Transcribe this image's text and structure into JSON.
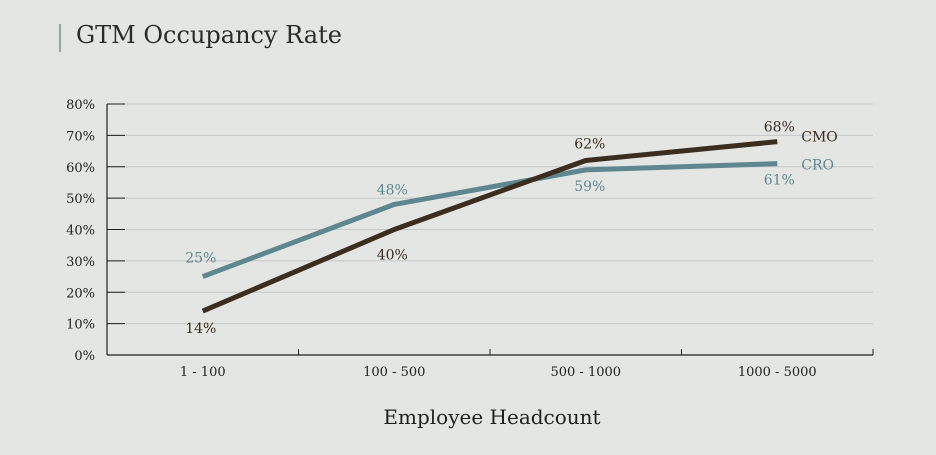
{
  "chart_data": {
    "type": "line",
    "title": "GTM Occupancy Rate",
    "xlabel": "Employee Headcount",
    "ylabel": "",
    "categories": [
      "1 - 100",
      "100 - 500",
      "500 - 1000",
      "1000 - 5000"
    ],
    "ylim": [
      0,
      80
    ],
    "yticks": [
      0,
      10,
      20,
      30,
      40,
      50,
      60,
      70,
      80
    ],
    "ytick_labels": [
      "0%",
      "10%",
      "20%",
      "30%",
      "40%",
      "50%",
      "60%",
      "70%",
      "80%"
    ],
    "grid": true,
    "series": [
      {
        "name": "CMO",
        "values": [
          14,
          40,
          62,
          68
        ],
        "labels": [
          "14%",
          "40%",
          "62%",
          "68%"
        ],
        "color": "#3b2e1f"
      },
      {
        "name": "CRO",
        "values": [
          25,
          48,
          59,
          61
        ],
        "labels": [
          "25%",
          "48%",
          "59%",
          "61%"
        ],
        "color": "#5f8790"
      }
    ]
  }
}
